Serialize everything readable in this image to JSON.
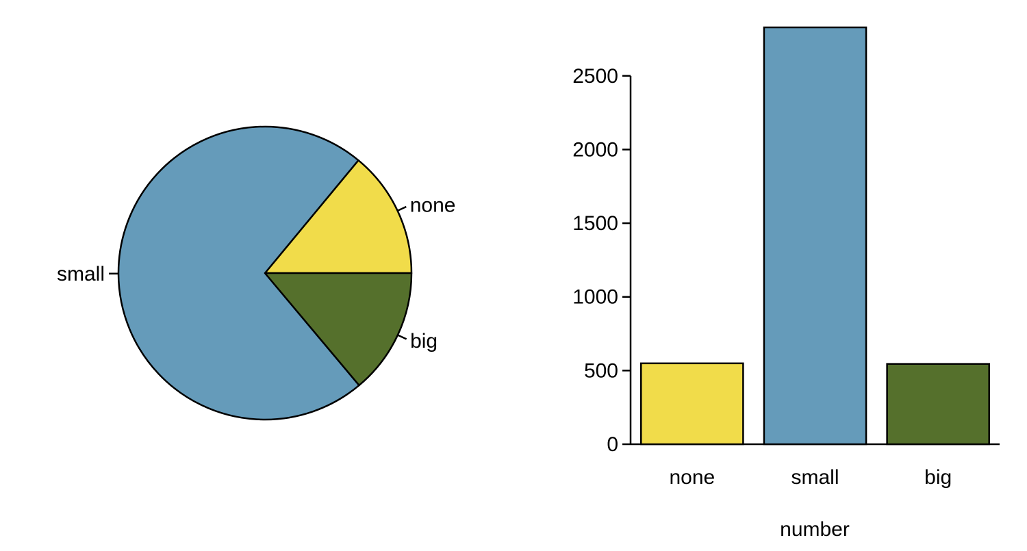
{
  "colors": {
    "none": "#F1DC4A",
    "small": "#659BBA",
    "big": "#55702C",
    "outline": "#000000",
    "background": "#FFFFFF"
  },
  "chart_data": [
    {
      "type": "pie",
      "title": "",
      "categories": [
        "none",
        "small",
        "big"
      ],
      "values": [
        549,
        2829,
        545
      ],
      "labels": [
        "none",
        "small",
        "big"
      ],
      "start": "3 o'clock",
      "direction": "counter-clockwise",
      "legend": "none"
    },
    {
      "type": "bar",
      "title": "",
      "categories": [
        "none",
        "small",
        "big"
      ],
      "values": [
        549,
        2829,
        545
      ],
      "xlabel": "number",
      "ylabel": "",
      "ylim": [
        0,
        2829
      ],
      "yticks": [
        0,
        500,
        1000,
        1500,
        2000,
        2500
      ],
      "grid": false,
      "legend": "none"
    }
  ]
}
